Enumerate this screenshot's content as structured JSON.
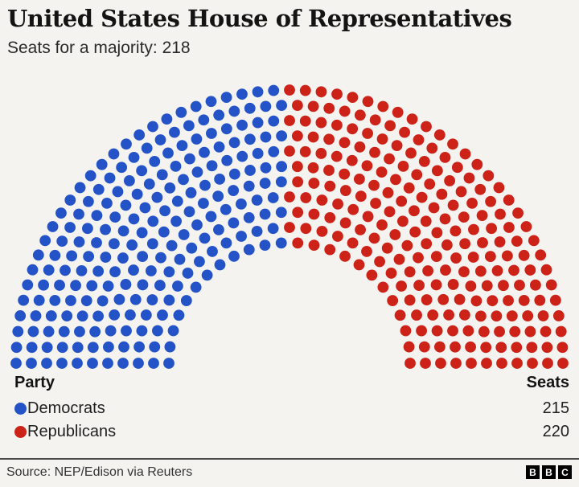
{
  "header": {
    "title": "United States House of Representatives",
    "subtitle": "Seats for a majority: 218"
  },
  "chart_data": {
    "type": "pie",
    "variant": "parliament-hemicycle",
    "title": "United States House of Representatives",
    "majority_threshold": 218,
    "majority_label": "Seats for a majority: 218",
    "total_seats": 435,
    "series": [
      {
        "name": "Democrats",
        "seats": 215,
        "color": "#2453c8"
      },
      {
        "name": "Republicans",
        "seats": 220,
        "color": "#cc2218"
      }
    ],
    "legend_position": "bottom-table"
  },
  "table": {
    "party_header": "Party",
    "seats_header": "Seats",
    "rows": [
      {
        "party": "Democrats",
        "seats": "215"
      },
      {
        "party": "Republicans",
        "seats": "220"
      }
    ]
  },
  "footer": {
    "source": "Source: NEP/Edison via Reuters",
    "logo_letters": [
      "B",
      "B",
      "C"
    ]
  }
}
